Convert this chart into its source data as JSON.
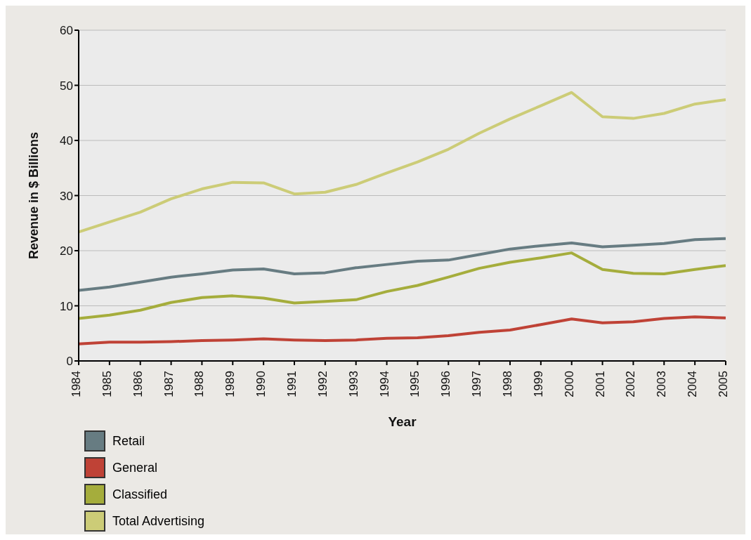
{
  "chart_data": {
    "type": "line",
    "xlabel": "Year",
    "ylabel": "Revenue in $ Billions",
    "x": [
      1984,
      1985,
      1986,
      1987,
      1988,
      1989,
      1990,
      1991,
      1992,
      1993,
      1994,
      1995,
      1996,
      1997,
      1998,
      1999,
      2000,
      2001,
      2002,
      2003,
      2004,
      2005
    ],
    "xlim": [
      1984,
      2005
    ],
    "xticks": [
      1984,
      1985,
      1986,
      1987,
      1988,
      1989,
      1990,
      1991,
      1992,
      1993,
      1994,
      1995,
      1996,
      1997,
      1998,
      1999,
      2000,
      2001,
      2002,
      2003,
      2004,
      2005
    ],
    "ylim": [
      0,
      60
    ],
    "yticks": [
      0,
      10,
      20,
      30,
      40,
      50,
      60
    ],
    "grid": "y",
    "legend": "bottom left",
    "marker": "none",
    "line_style": "solid",
    "series": [
      {
        "name": "Retail",
        "color": "#677c82",
        "values": [
          12.8,
          13.4,
          14.3,
          15.2,
          15.8,
          16.5,
          16.7,
          15.8,
          16.0,
          16.9,
          17.5,
          18.1,
          18.3,
          19.3,
          20.3,
          20.9,
          21.4,
          20.7,
          21.0,
          21.3,
          22.0,
          22.2
        ]
      },
      {
        "name": "General",
        "color": "#bf4236",
        "values": [
          3.1,
          3.4,
          3.4,
          3.5,
          3.7,
          3.8,
          4.0,
          3.8,
          3.7,
          3.8,
          4.1,
          4.2,
          4.6,
          5.2,
          5.6,
          6.6,
          7.6,
          6.9,
          7.1,
          7.7,
          8.0,
          7.8
        ]
      },
      {
        "name": "Classified",
        "color": "#a5ad3c",
        "values": [
          7.7,
          8.3,
          9.2,
          10.6,
          11.5,
          11.8,
          11.4,
          10.5,
          10.8,
          11.1,
          12.6,
          13.7,
          15.2,
          16.8,
          17.9,
          18.7,
          19.6,
          16.6,
          15.9,
          15.8,
          16.6,
          17.3
        ]
      },
      {
        "name": "Total Advertising",
        "color": "#cccc77",
        "values": [
          23.4,
          25.2,
          27.0,
          29.4,
          31.2,
          32.4,
          32.3,
          30.3,
          30.6,
          32.0,
          34.1,
          36.1,
          38.4,
          41.3,
          43.9,
          46.3,
          48.7,
          44.3,
          44.0,
          44.9,
          46.6,
          47.4
        ]
      }
    ]
  }
}
